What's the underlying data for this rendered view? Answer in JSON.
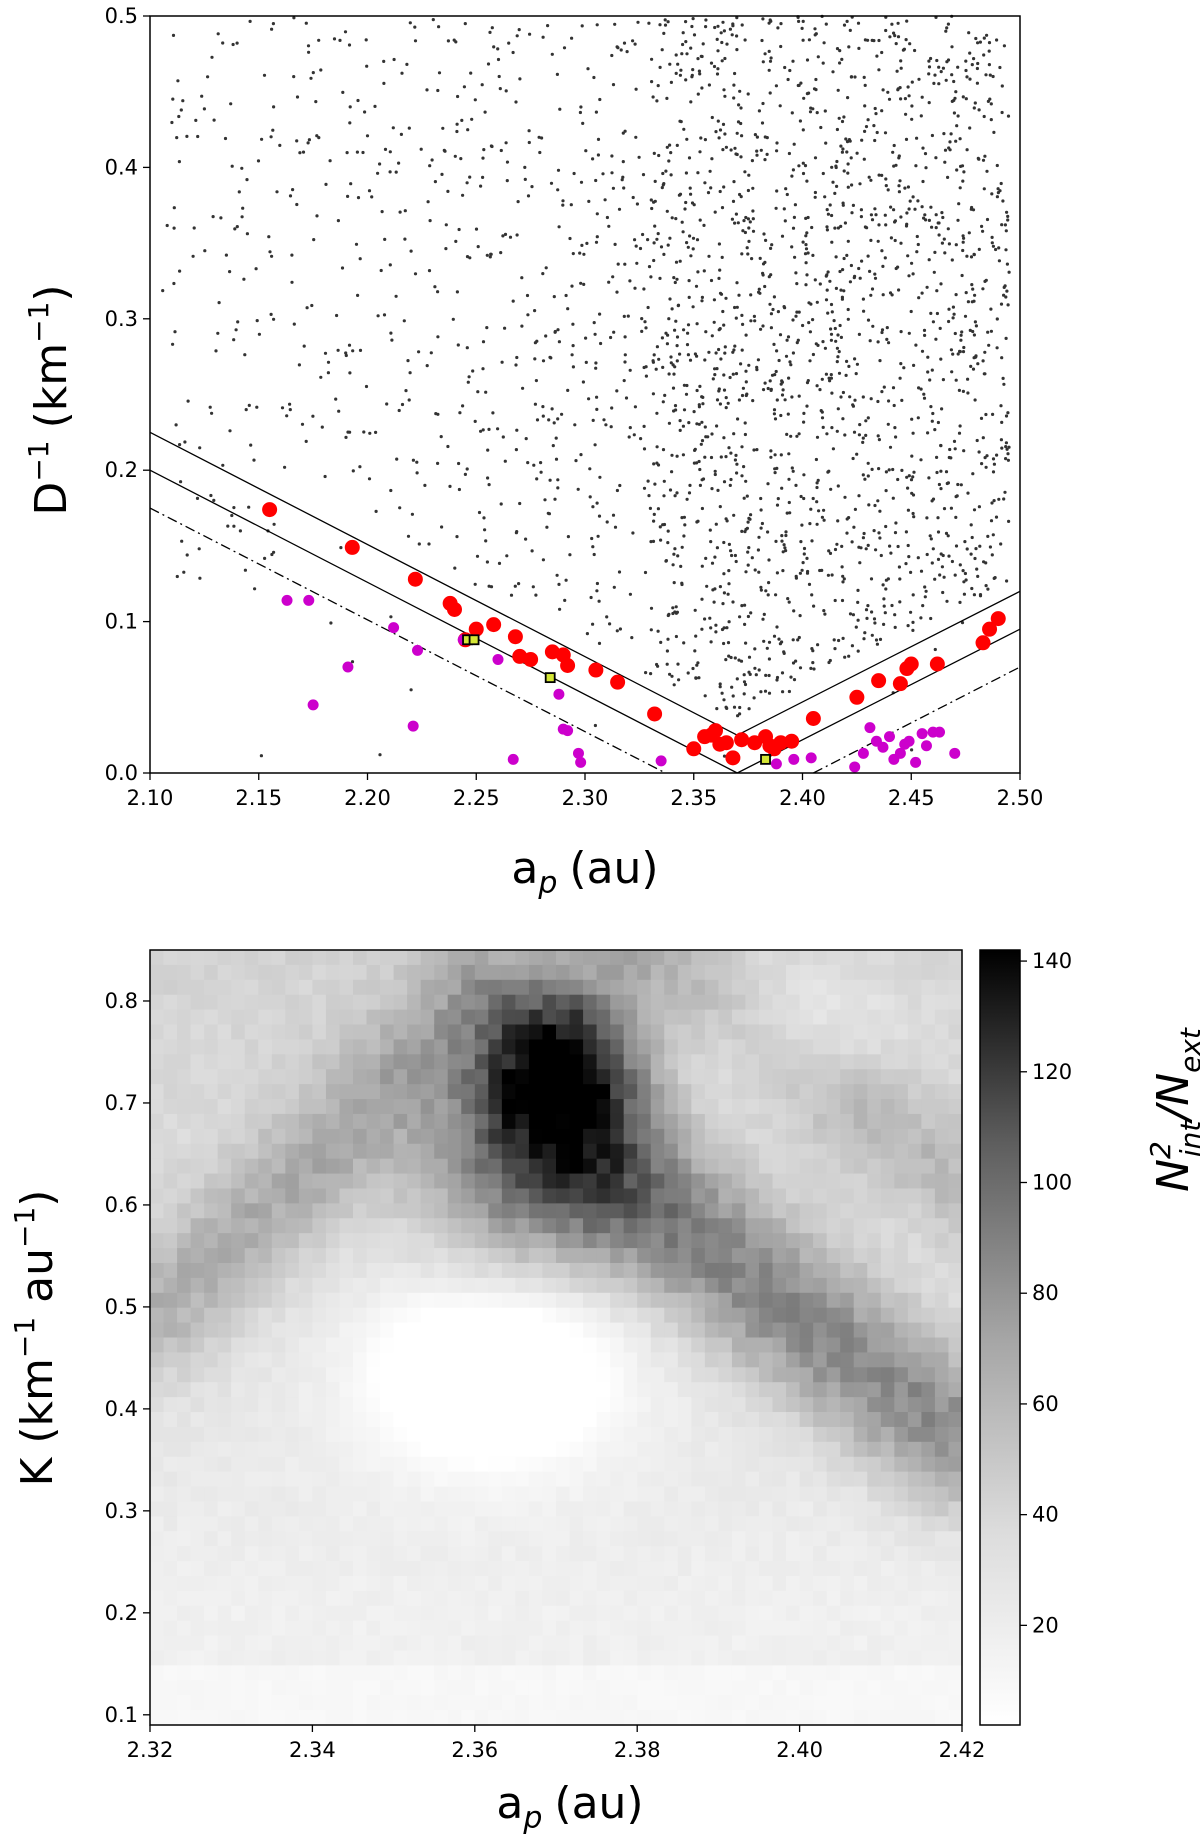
{
  "chart_data": [
    {
      "type": "scatter",
      "xlabel": "a",
      "xlabel_sub": "p",
      "xlabel_unit": "(au)",
      "ylabel": "D",
      "ylabel_sup": "−1",
      "ylabel_unit": "(km",
      "ylabel_unit_sup": "−1",
      "ylabel_close": ")",
      "xlim": [
        2.1,
        2.5
      ],
      "ylim": [
        0.0,
        0.5
      ],
      "xticks": [
        2.1,
        2.15,
        2.2,
        2.25,
        2.3,
        2.35,
        2.4,
        2.45,
        2.5
      ],
      "xtick_labels": [
        "2.10",
        "2.15",
        "2.20",
        "2.25",
        "2.30",
        "2.35",
        "2.40",
        "2.45",
        "2.50"
      ],
      "yticks": [
        0.0,
        0.1,
        0.2,
        0.3,
        0.4,
        0.5
      ],
      "ytick_labels": [
        "0.0",
        "0.1",
        "0.2",
        "0.3",
        "0.4",
        "0.5"
      ],
      "background": {
        "color": "#333333",
        "count": 2400,
        "note_distribution": "sparse at low a_p, dense for a_p > 2.30 above the V lines"
      },
      "v_lines": {
        "vertex_a": 2.37,
        "lines": [
          {
            "style": "solid",
            "left": [
              [
                2.1,
                0.225
              ],
              [
                2.37,
                0.025
              ]
            ],
            "right": [
              [
                2.37,
                0.025
              ],
              [
                2.5,
                0.12
              ]
            ]
          },
          {
            "style": "solid",
            "left": [
              [
                2.1,
                0.2
              ],
              [
                2.37,
                0.0
              ]
            ],
            "right": [
              [
                2.37,
                0.0
              ],
              [
                2.5,
                0.095
              ]
            ]
          },
          {
            "style": "dashdot",
            "left": [
              [
                2.1,
                0.175
              ],
              [
                2.337,
                0.0
              ]
            ],
            "right": [
              [
                2.405,
                0.0
              ],
              [
                2.5,
                0.07
              ]
            ]
          }
        ]
      },
      "series": [
        {
          "color": "#ff0000",
          "points": [
            [
              2.155,
              0.174
            ],
            [
              2.193,
              0.149
            ],
            [
              2.222,
              0.128
            ],
            [
              2.238,
              0.112
            ],
            [
              2.24,
              0.108
            ],
            [
              2.245,
              0.088
            ],
            [
              2.25,
              0.095
            ],
            [
              2.258,
              0.098
            ],
            [
              2.268,
              0.09
            ],
            [
              2.27,
              0.077
            ],
            [
              2.275,
              0.075
            ],
            [
              2.285,
              0.08
            ],
            [
              2.29,
              0.078
            ],
            [
              2.292,
              0.071
            ],
            [
              2.305,
              0.068
            ],
            [
              2.315,
              0.06
            ],
            [
              2.332,
              0.039
            ],
            [
              2.35,
              0.016
            ],
            [
              2.355,
              0.024
            ],
            [
              2.358,
              0.025
            ],
            [
              2.36,
              0.028
            ],
            [
              2.362,
              0.019
            ],
            [
              2.365,
              0.02
            ],
            [
              2.368,
              0.01
            ],
            [
              2.372,
              0.022
            ],
            [
              2.378,
              0.02
            ],
            [
              2.383,
              0.024
            ],
            [
              2.385,
              0.018
            ],
            [
              2.387,
              0.016
            ],
            [
              2.39,
              0.02
            ],
            [
              2.395,
              0.021
            ],
            [
              2.405,
              0.036
            ],
            [
              2.425,
              0.05
            ],
            [
              2.435,
              0.061
            ],
            [
              2.445,
              0.059
            ],
            [
              2.448,
              0.069
            ],
            [
              2.45,
              0.072
            ],
            [
              2.462,
              0.072
            ],
            [
              2.483,
              0.086
            ],
            [
              2.486,
              0.095
            ],
            [
              2.49,
              0.102
            ]
          ]
        },
        {
          "color": "#cc00cc",
          "points": [
            [
              2.163,
              0.114
            ],
            [
              2.173,
              0.114
            ],
            [
              2.175,
              0.045
            ],
            [
              2.191,
              0.07
            ],
            [
              2.212,
              0.096
            ],
            [
              2.221,
              0.031
            ],
            [
              2.223,
              0.081
            ],
            [
              2.244,
              0.088
            ],
            [
              2.26,
              0.075
            ],
            [
              2.267,
              0.009
            ],
            [
              2.288,
              0.052
            ],
            [
              2.29,
              0.029
            ],
            [
              2.292,
              0.028
            ],
            [
              2.297,
              0.013
            ],
            [
              2.298,
              0.007
            ],
            [
              2.335,
              0.008
            ],
            [
              2.388,
              0.006
            ],
            [
              2.396,
              0.009
            ],
            [
              2.404,
              0.01
            ],
            [
              2.424,
              0.004
            ],
            [
              2.428,
              0.013
            ],
            [
              2.431,
              0.03
            ],
            [
              2.434,
              0.021
            ],
            [
              2.437,
              0.017
            ],
            [
              2.44,
              0.024
            ],
            [
              2.442,
              0.009
            ],
            [
              2.445,
              0.013
            ],
            [
              2.447,
              0.019
            ],
            [
              2.449,
              0.021
            ],
            [
              2.452,
              0.007
            ],
            [
              2.455,
              0.026
            ],
            [
              2.457,
              0.018
            ],
            [
              2.46,
              0.027
            ],
            [
              2.463,
              0.027
            ],
            [
              2.47,
              0.013
            ]
          ]
        },
        {
          "color": "#d4e635",
          "marker": "square",
          "points": [
            [
              2.246,
              0.088
            ],
            [
              2.249,
              0.088
            ],
            [
              2.284,
              0.063
            ],
            [
              2.383,
              0.009
            ]
          ]
        }
      ]
    },
    {
      "type": "heatmap",
      "xlabel": "a",
      "xlabel_sub": "p",
      "xlabel_unit": "(au)",
      "ylabel": "K (km",
      "ylabel_sup": "−1",
      "ylabel_mid": " au",
      "ylabel_sup2": "−1",
      "ylabel_close": ")",
      "xlim": [
        2.32,
        2.42
      ],
      "ylim": [
        0.09,
        0.85
      ],
      "xticks": [
        2.32,
        2.34,
        2.36,
        2.38,
        2.4,
        2.42
      ],
      "xtick_labels": [
        "2.32",
        "2.34",
        "2.36",
        "2.38",
        "2.40",
        "2.42"
      ],
      "yticks": [
        0.1,
        0.2,
        0.3,
        0.4,
        0.5,
        0.6,
        0.7,
        0.8
      ],
      "ytick_labels": [
        "0.1",
        "0.2",
        "0.3",
        "0.4",
        "0.5",
        "0.6",
        "0.7",
        "0.8"
      ],
      "grid": [
        60,
        52
      ],
      "colorbar": {
        "label_main": "N",
        "label_sup": "2",
        "label_sub": "int",
        "label_slash": "/N",
        "label_sub2": "ext",
        "range": [
          2,
          142
        ],
        "ticks": [
          20,
          40,
          60,
          80,
          100,
          120,
          140
        ],
        "tick_labels": [
          "20",
          "40",
          "60",
          "80",
          "100",
          "120",
          "140"
        ]
      },
      "features": [
        {
          "kind": "peak",
          "a": 2.37,
          "K": 0.73,
          "value": 140,
          "sa": 0.006,
          "sK": 0.055
        },
        {
          "kind": "blob",
          "a": 2.368,
          "K": 0.64,
          "value": 60,
          "sa": 0.009,
          "sK": 0.06
        },
        {
          "kind": "band",
          "from": [
            2.36,
            0.8
          ],
          "to": [
            2.322,
            0.5
          ],
          "value": 26,
          "width": 0.045
        },
        {
          "kind": "band",
          "from": [
            2.378,
            0.62
          ],
          "to": [
            2.418,
            0.38
          ],
          "value": 48,
          "width": 0.05
        },
        {
          "kind": "band",
          "from": [
            2.38,
            0.85
          ],
          "to": [
            2.42,
            0.62
          ],
          "value": 18,
          "width": 0.04
        },
        {
          "kind": "low",
          "a": 2.362,
          "K": 0.44,
          "value": -22,
          "sa": 0.012,
          "sK": 0.07
        },
        {
          "kind": "low",
          "a": 2.397,
          "K": 0.77,
          "value": -16,
          "sa": 0.01,
          "sK": 0.05
        }
      ]
    }
  ]
}
